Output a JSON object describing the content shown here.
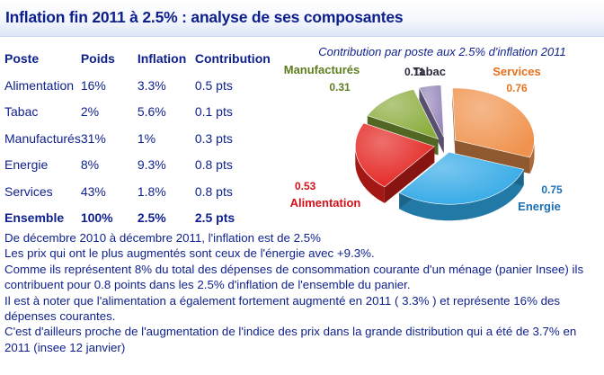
{
  "title": "Inflation fin 2011 à 2.5% : analyse de ses composantes",
  "table": {
    "headers": [
      "Poste",
      "Poids",
      "Inflation",
      "Contribution"
    ],
    "rows": [
      [
        "Alimentation",
        "16%",
        "3.3%",
        "0.5 pts"
      ],
      [
        "Tabac",
        "2%",
        "5.6%",
        "0.1 pts"
      ],
      [
        "Manufacturés",
        "31%",
        "1%",
        "0.3 pts"
      ],
      [
        "Energie",
        "8%",
        "9.3%",
        "0.8 pts"
      ],
      [
        "Services",
        "43%",
        "1.8%",
        "0.8 pts"
      ]
    ],
    "total": [
      "Ensemble",
      "100%",
      "2.5%",
      "2.5 pts"
    ]
  },
  "chart_data": {
    "type": "pie",
    "title": "Contribution par poste aux 2.5% d'inflation 2011",
    "slices": [
      {
        "label": "Services",
        "value": 0.76,
        "value_label": "0.76",
        "color": "#f0924c"
      },
      {
        "label": "Energie",
        "value": 0.75,
        "value_label": "0.75",
        "color": "#2fa8e6"
      },
      {
        "label": "Alimentation",
        "value": 0.53,
        "value_label": "0.53",
        "color": "#e3211d"
      },
      {
        "label": "Manufacturés",
        "value": 0.31,
        "value_label": "0.31",
        "color": "#8aac3c"
      },
      {
        "label": "Tabac",
        "value": 0.11,
        "value_label": "0.11",
        "color": "#9585b9"
      }
    ],
    "label_colors": {
      "Services": "#e7701c",
      "Energie": "#1a6fb5",
      "Alimentation": "#d6101a",
      "Manufacturés": "#5e7d1e",
      "Tabac": "#2b2b3f"
    },
    "value_colors": {
      "Services": "#e7701c",
      "Energie": "#1a6fb5",
      "Alimentation": "#d6101a",
      "Manufacturés": "#5e7d1e",
      "Tabac": "#2b2b3f"
    }
  },
  "notes": [
    "De décembre 2010 à décembre 2011, l'inflation est de 2.5%",
    "Les prix qui ont le plus augmentés sont ceux de l'énergie avec +9.3%.",
    "Comme ils représentent 8% du total des dépenses de consommation courante d'un ménage (panier Insee) ils contribuent pour 0.8 points dans les 2.5% d'inflation de l'ensemble du panier.",
    "Il est à noter que l'alimentation a également fortement augmenté en 2011 ( 3.3% ) et représente 16% des dépenses courantes.",
    "C'est d'ailleurs proche de l'augmentation de l'indice des prix dans la grande distribution qui a été de 3.7% en 2011 (insee 12 janvier)"
  ]
}
